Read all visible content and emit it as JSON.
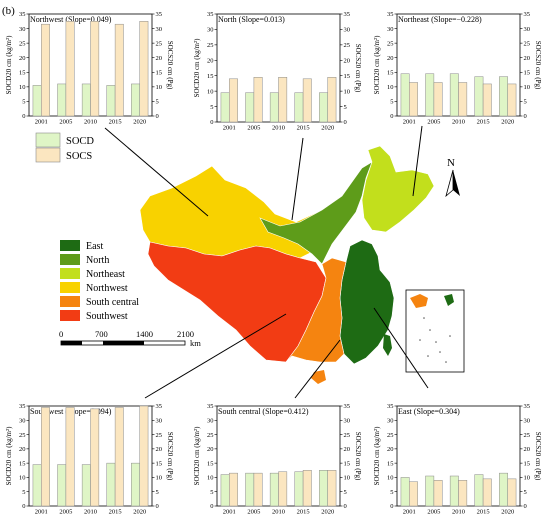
{
  "figure_label": "(b)",
  "legend": {
    "socd_label": "SOCD",
    "socs_label": "SOCS"
  },
  "map_legend": [
    {
      "name": "East",
      "color": "#1e6b14"
    },
    {
      "name": "North",
      "color": "#5e9c1a"
    },
    {
      "name": "Northeast",
      "color": "#c2df1c"
    },
    {
      "name": "Northwest",
      "color": "#f8d200"
    },
    {
      "name": "South central",
      "color": "#f58410"
    },
    {
      "name": "Southwest",
      "color": "#f23c14"
    }
  ],
  "scale_bar": {
    "labels": [
      "0",
      "700",
      "1400",
      "2100"
    ],
    "unit": "km"
  },
  "north_label": "N",
  "colors": {
    "socd_fill": "#dff5c6",
    "socs_fill": "#fbe6c0",
    "bar_stroke": "#8a8a8a"
  },
  "chart_data": [
    {
      "type": "bar",
      "title": "Northwest (Slope=0.049)",
      "categories": [
        "2001",
        "2005",
        "2010",
        "2015",
        "2020"
      ],
      "ylabel_left": "SOCD20 cm (kg/m²)",
      "ylabel_right": "SOCS20 cm (Pg)",
      "ylim_left": [
        0,
        35
      ],
      "ylim_right": [
        0,
        35
      ],
      "series": [
        {
          "name": "SOCD",
          "values": [
            10.5,
            11.0,
            11.0,
            10.5,
            11.0
          ]
        },
        {
          "name": "SOCS",
          "values": [
            31.5,
            32.5,
            32.5,
            31.5,
            32.5
          ]
        }
      ]
    },
    {
      "type": "bar",
      "title": "North (Slope=0.013)",
      "categories": [
        "2001",
        "2005",
        "2010",
        "2015",
        "2020"
      ],
      "ylabel_left": "SOCD20 cm (kg/m²)",
      "ylabel_right": "SOCS20 cm (Pg)",
      "ylim_left": [
        0,
        35
      ],
      "ylim_right": [
        0,
        35
      ],
      "series": [
        {
          "name": "SOCD",
          "values": [
            9.5,
            9.5,
            9.5,
            9.5,
            9.5
          ]
        },
        {
          "name": "SOCS",
          "values": [
            14.0,
            14.5,
            14.5,
            14.0,
            14.5
          ]
        }
      ]
    },
    {
      "type": "bar",
      "title": "Northeast (Slope=−0.228)",
      "categories": [
        "2001",
        "2005",
        "2010",
        "2015",
        "2020"
      ],
      "ylabel_left": "SOCD20 cm (kg/m²)",
      "ylabel_right": "SOCS20 cm (Pg)",
      "ylim_left": [
        0,
        35
      ],
      "ylim_right": [
        0,
        35
      ],
      "series": [
        {
          "name": "SOCD",
          "values": [
            14.5,
            14.5,
            14.5,
            13.5,
            13.5
          ]
        },
        {
          "name": "SOCS",
          "values": [
            11.5,
            11.5,
            11.5,
            11.0,
            11.0
          ]
        }
      ]
    },
    {
      "type": "bar",
      "title": "Southwest (Slope=0.094)",
      "categories": [
        "2001",
        "2005",
        "2010",
        "2015",
        "2020"
      ],
      "ylabel_left": "SOCD20 cm (kg/m²)",
      "ylabel_right": "SOCS20 cm (Pg)",
      "ylim_left": [
        0,
        35
      ],
      "ylim_right": [
        0,
        35
      ],
      "series": [
        {
          "name": "SOCD",
          "values": [
            14.5,
            14.5,
            14.5,
            15.0,
            15.0
          ]
        },
        {
          "name": "SOCS",
          "values": [
            34.5,
            34.5,
            34.0,
            34.5,
            35.0
          ]
        }
      ]
    },
    {
      "type": "bar",
      "title": "South central (Slope=0.412)",
      "categories": [
        "2001",
        "2005",
        "2010",
        "2015",
        "2020"
      ],
      "ylabel_left": "SOCD20 cm (kg/m²)",
      "ylabel_right": "SOCS20 cm (Pg)",
      "ylim_left": [
        0,
        35
      ],
      "ylim_right": [
        0,
        35
      ],
      "series": [
        {
          "name": "SOCD",
          "values": [
            11.0,
            11.5,
            11.5,
            12.0,
            12.5
          ]
        },
        {
          "name": "SOCS",
          "values": [
            11.5,
            11.5,
            12.0,
            12.5,
            12.5
          ]
        }
      ]
    },
    {
      "type": "bar",
      "title": "East (Slope=0.304)",
      "categories": [
        "2001",
        "2005",
        "2010",
        "2015",
        "2020"
      ],
      "ylabel_left": "SOCD20 cm (kg/m²)",
      "ylabel_right": "SOCS20 cm (Pg)",
      "ylim_left": [
        0,
        35
      ],
      "ylim_right": [
        0,
        35
      ],
      "series": [
        {
          "name": "SOCD",
          "values": [
            10.0,
            10.5,
            10.5,
            11.0,
            11.5
          ]
        },
        {
          "name": "SOCS",
          "values": [
            8.5,
            9.0,
            9.0,
            9.5,
            9.5
          ]
        }
      ]
    }
  ]
}
